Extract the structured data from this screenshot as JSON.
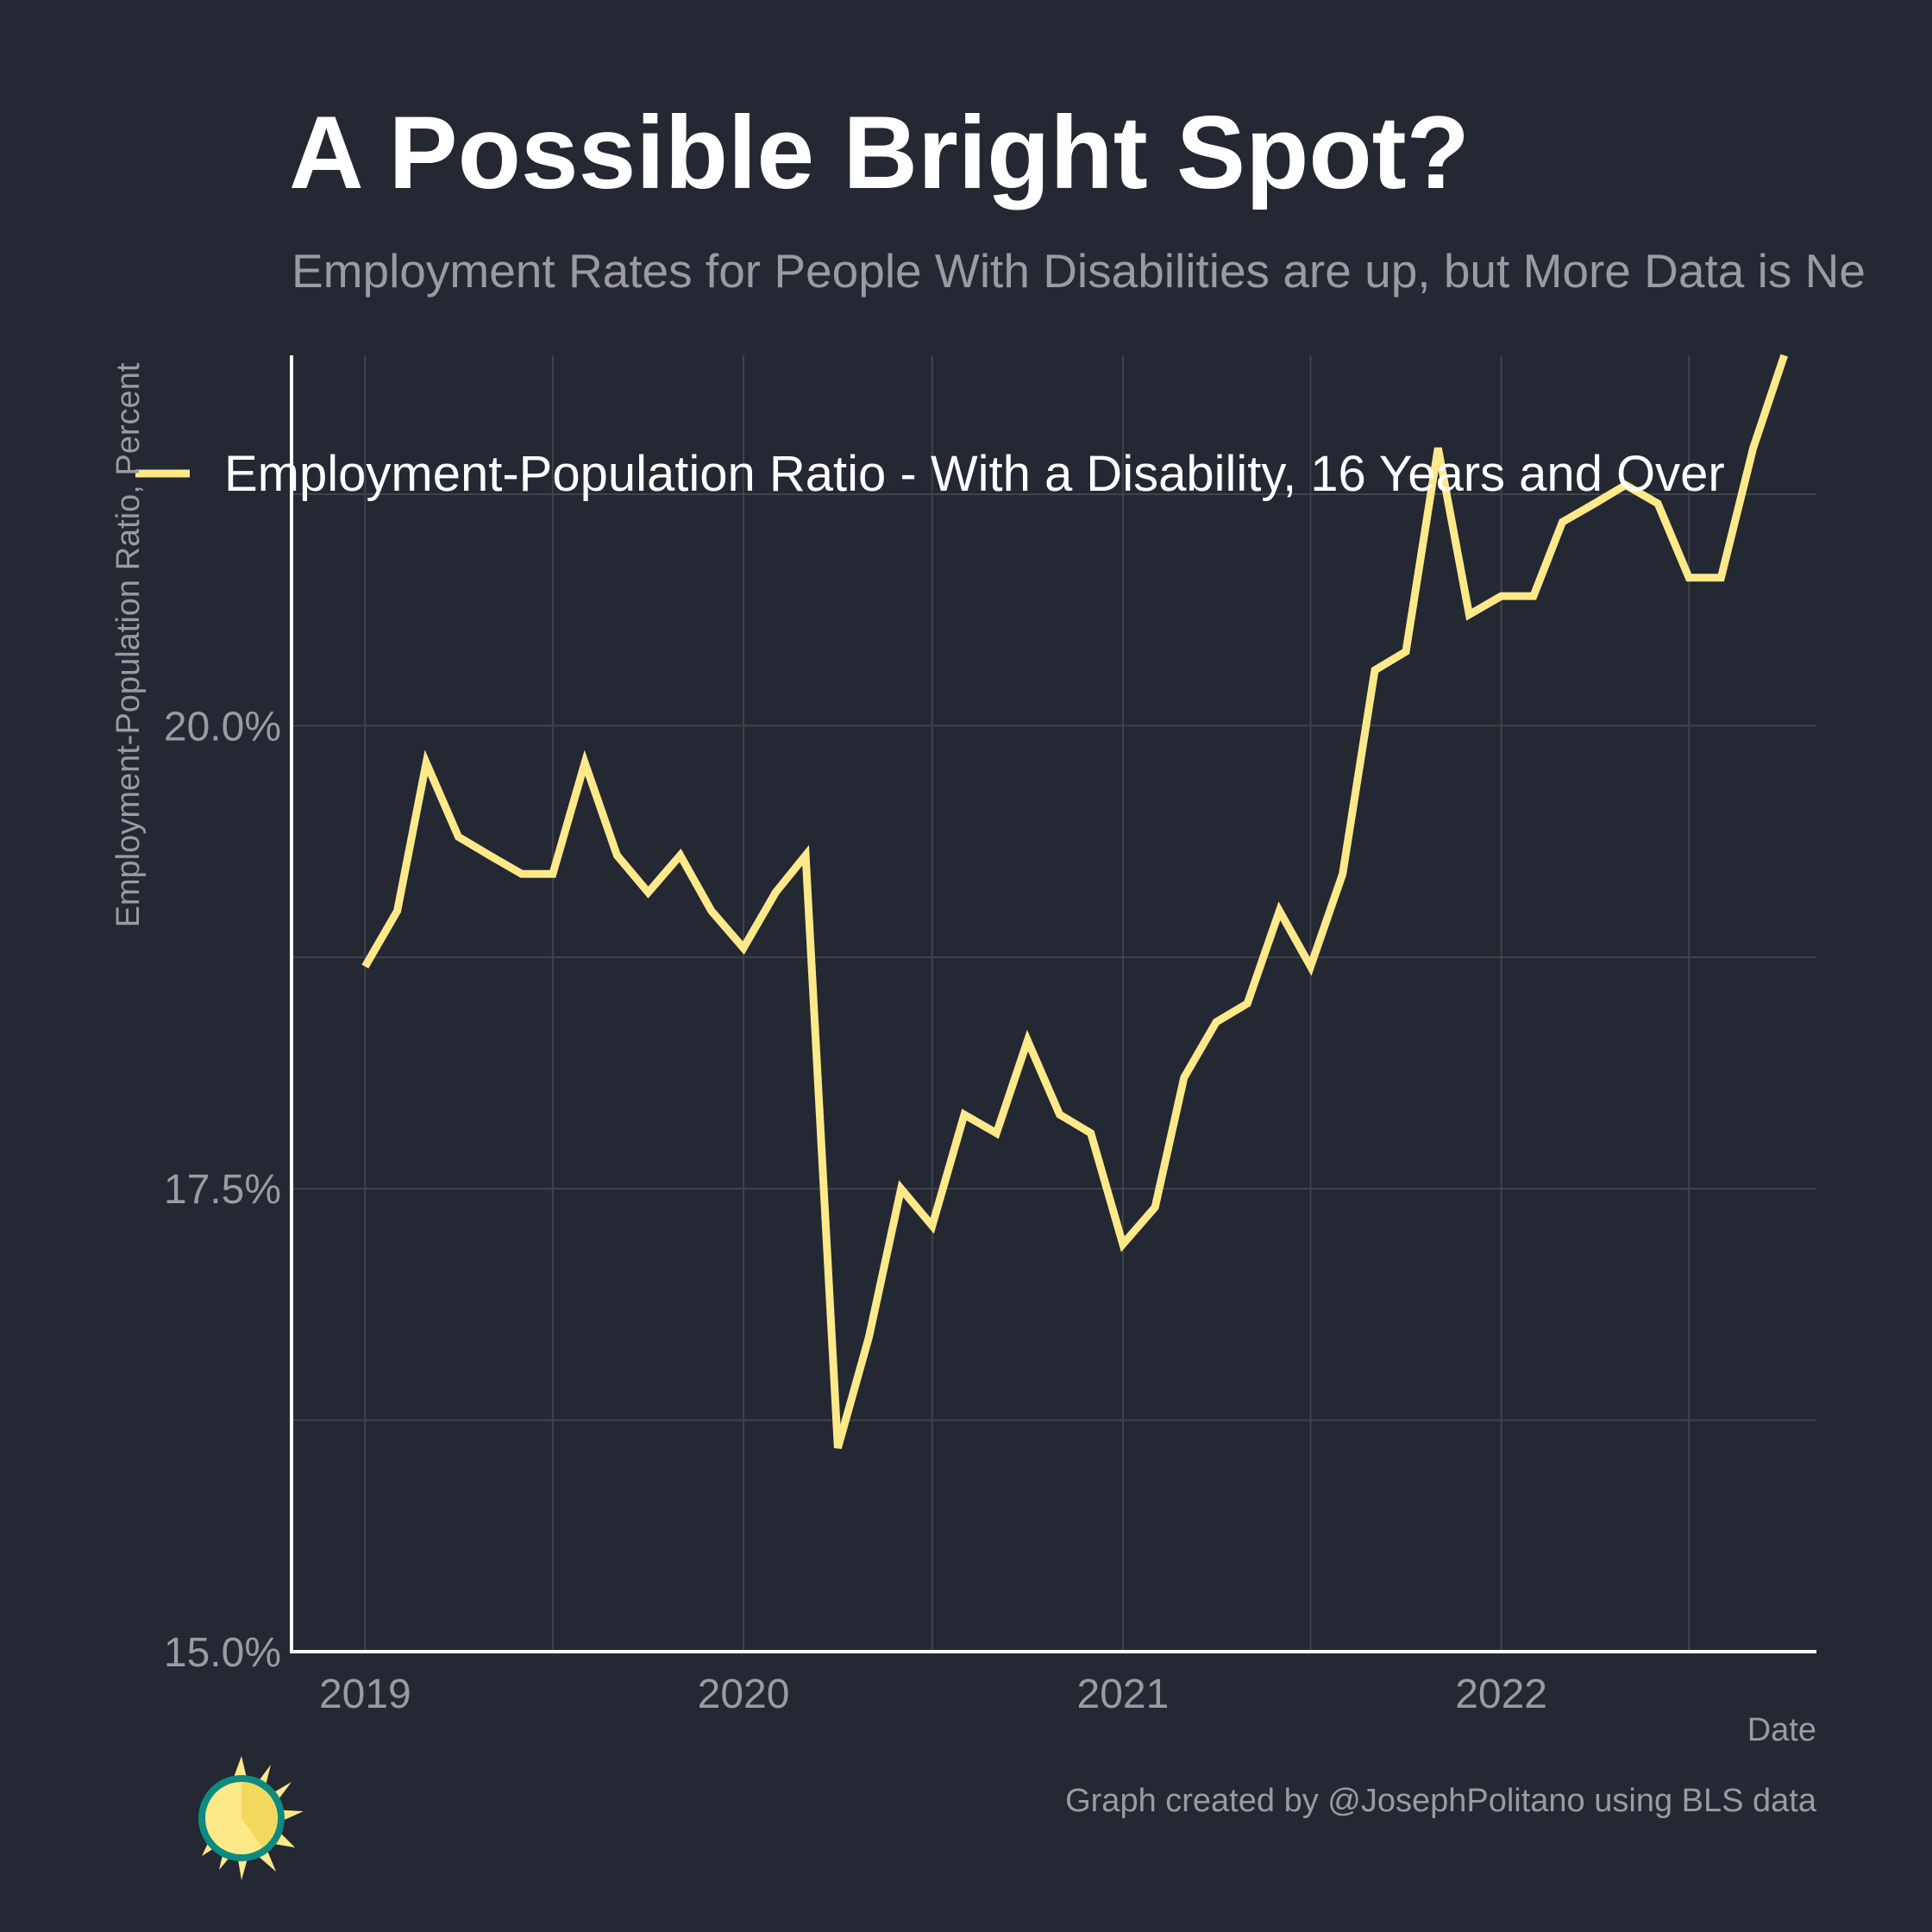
{
  "colors": {
    "background": "#242832",
    "series": "#fde98a",
    "grid": "#3f434b",
    "axis": "#ffffff",
    "muted_text": "#9a9ba0",
    "logo_ring": "#0e8a80"
  },
  "logo": {
    "icon": "sun-logo-icon"
  },
  "chart_data": {
    "type": "line",
    "title": "A Possible Bright Spot?",
    "subtitle": "Employment Rates for People With Disabilities are up, but More Data is Ne",
    "xlabel": "Date",
    "ylabel": "Employment-Population Ratio, Percent",
    "caption": "Graph created by @JosephPolitano using BLS data",
    "x_unit": "date",
    "xlim": [
      "2018-10-22",
      "2022-11-01"
    ],
    "ylim": [
      15.0,
      22.0
    ],
    "y_ticks": [
      15.0,
      17.5,
      20.0
    ],
    "y_tick_labels": [
      "15.0%",
      "17.5%",
      "20.0%"
    ],
    "y_minor_gridlines": [
      16.25,
      18.75,
      21.25
    ],
    "x_ticks": [
      "2019-01-01",
      "2020-01-01",
      "2021-01-01",
      "2022-01-01"
    ],
    "x_tick_labels": [
      "2019",
      "2020",
      "2021",
      "2022"
    ],
    "x_minor_gridlines": [
      "2019-07-01",
      "2020-07-01",
      "2021-07-01",
      "2022-07-01"
    ],
    "grid": true,
    "legend": {
      "position": "top-left, inside plot"
    },
    "series": [
      {
        "name": "Employment-Population Ratio - With a Disability, 16 Years and Over",
        "color": "#fde98a",
        "x": [
          "2019-01",
          "2019-02",
          "2019-03",
          "2019-04",
          "2019-05",
          "2019-06",
          "2019-07",
          "2019-08",
          "2019-09",
          "2019-10",
          "2019-11",
          "2019-12",
          "2020-01",
          "2020-02",
          "2020-03",
          "2020-04",
          "2020-05",
          "2020-06",
          "2020-07",
          "2020-08",
          "2020-09",
          "2020-10",
          "2020-11",
          "2020-12",
          "2021-01",
          "2021-02",
          "2021-03",
          "2021-04",
          "2021-05",
          "2021-06",
          "2021-07",
          "2021-08",
          "2021-09",
          "2021-10",
          "2021-11",
          "2021-12",
          "2022-01",
          "2022-02",
          "2022-03",
          "2022-04",
          "2022-05",
          "2022-06",
          "2022-07",
          "2022-08",
          "2022-09",
          "2022-10"
        ],
        "values": [
          18.7,
          19.0,
          19.8,
          19.4,
          19.3,
          19.2,
          19.2,
          19.8,
          19.3,
          19.1,
          19.3,
          19.0,
          18.8,
          19.1,
          19.3,
          16.1,
          16.7,
          17.5,
          17.3,
          17.9,
          17.8,
          18.3,
          17.9,
          17.8,
          17.2,
          17.4,
          18.1,
          18.4,
          18.5,
          19.0,
          18.7,
          19.2,
          20.3,
          20.4,
          21.5,
          20.6,
          20.7,
          20.7,
          21.1,
          21.2,
          21.3,
          21.2,
          20.8,
          20.8,
          21.5,
          22.0
        ]
      }
    ]
  }
}
